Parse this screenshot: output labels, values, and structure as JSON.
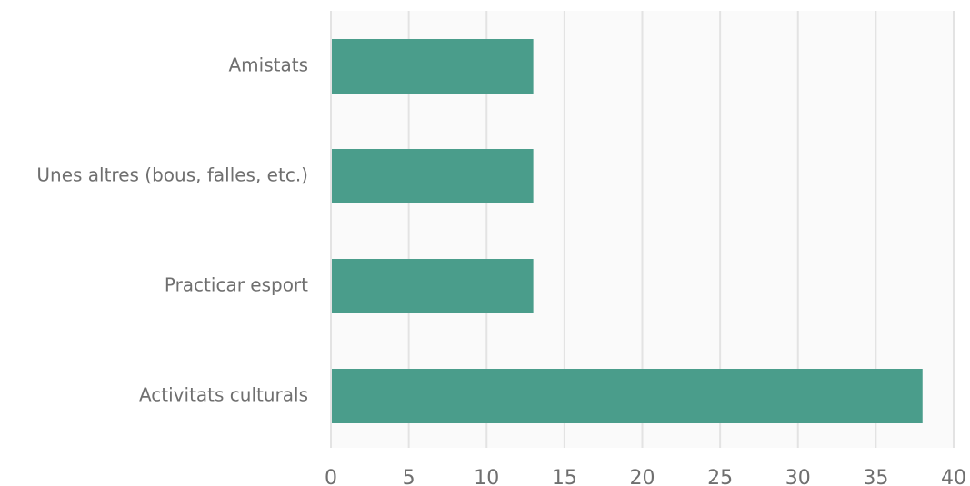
{
  "chart_data": {
    "type": "bar",
    "orientation": "horizontal",
    "title": "",
    "xlabel": "",
    "ylabel": "",
    "categories": [
      "Amistats",
      "Unes altres (bous, falles, etc.)",
      "Practicar esport",
      "Activitats culturals"
    ],
    "values": [
      13,
      13,
      13,
      38
    ],
    "xlim": [
      0,
      40
    ],
    "xticks": [
      0,
      5,
      10,
      15,
      20,
      25,
      30,
      35,
      40
    ],
    "xtick_labels": [
      "0",
      "5",
      "10",
      "15",
      "20",
      "25",
      "30",
      "35",
      "40"
    ],
    "grid": true,
    "legend": "none",
    "colors": {
      "bar": "#4a9d8b",
      "plot_background": "#fafafa",
      "gridline": "#e3e3e3",
      "label_text": "#6f6f6f"
    }
  }
}
